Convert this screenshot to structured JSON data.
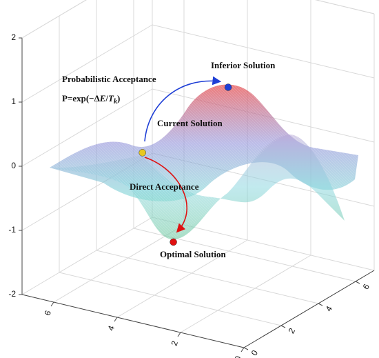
{
  "chart_data": {
    "type": "surface3d",
    "xlim": [
      0,
      7
    ],
    "xticks": [
      0,
      2,
      4,
      6
    ],
    "ylim": [
      0,
      7
    ],
    "yticks": [
      0,
      2,
      4,
      6
    ],
    "zlim": [
      -2,
      2
    ],
    "zticks": [
      -2,
      -1,
      0,
      1,
      2
    ],
    "grid": true,
    "points": [
      {
        "label": "Inferior Solution",
        "x": 2.2,
        "y": 2.9,
        "z": 1.3,
        "color": "#1f3fd6"
      },
      {
        "label": "Current Solution",
        "x": 4.2,
        "y": 1.7,
        "z": 0.25,
        "color": "#e8c820"
      },
      {
        "label": "Optimal Solution",
        "x": 3.4,
        "y": 2.0,
        "z": -1.1,
        "color": "#e01010"
      }
    ],
    "annotations": {
      "probabilistic": "Probabilistic Acceptance",
      "formula": [
        "P=exp(−Δ",
        "E",
        "/",
        "T",
        "k",
        ")"
      ],
      "direct": "Direct Acceptance"
    }
  }
}
